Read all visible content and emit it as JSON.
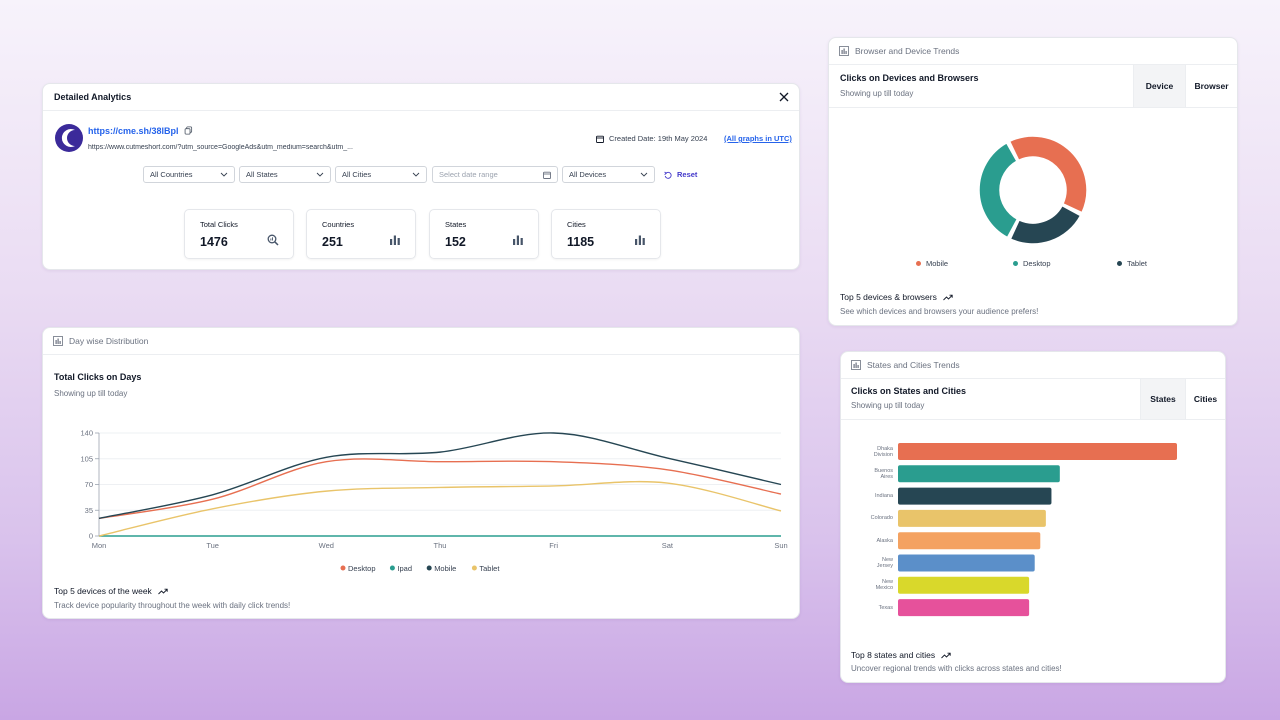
{
  "analytics": {
    "title": "Detailed Analytics",
    "short_url": "https://cme.sh/38lBpl",
    "long_url": "https://www.cutmeshort.com/?utm_source=GoogleAds&utm_medium=search&utm_...",
    "created": "Created Date: 19th May 2024",
    "utc": "(All graphs in UTC)",
    "filters": {
      "countries": "All Countries",
      "states": "All States",
      "cities": "All Cities",
      "date_placeholder": "Select date range",
      "devices": "All Devices",
      "reset": "Reset"
    },
    "stats": [
      {
        "label": "Total Clicks",
        "value": "1476"
      },
      {
        "label": "Countries",
        "value": "251"
      },
      {
        "label": "States",
        "value": "152"
      },
      {
        "label": "Cities",
        "value": "1185"
      }
    ]
  },
  "daywise": {
    "header": "Day wise Distribution",
    "title": "Total Clicks on Days",
    "subtitle": "Showing up till today",
    "footer_title": "Top 5 devices of the week",
    "footer_sub": "Track device popularity throughout the week with daily click trends!"
  },
  "devices": {
    "header": "Browser and Device Trends",
    "title": "Clicks on Devices and Browsers",
    "subtitle": "Showing up till today",
    "tabs": {
      "device": "Device",
      "browser": "Browser"
    },
    "footer_title": "Top 5 devices & browsers",
    "footer_sub": "See which devices and browsers your audience prefers!"
  },
  "states": {
    "header": "States and Cities Trends",
    "title": "Clicks on States and Cities",
    "subtitle": "Showing up till today",
    "tabs": {
      "states": "States",
      "cities": "Cities"
    },
    "footer_title": "Top 8 states and cities",
    "footer_sub": "Uncover regional trends with clicks across states and cities!"
  },
  "chart_data": [
    {
      "type": "line",
      "title": "Total Clicks on Days",
      "categories": [
        "Mon",
        "Tue",
        "Wed",
        "Thu",
        "Fri",
        "Sat",
        "Sun"
      ],
      "ylim": [
        0,
        140
      ],
      "yticks": [
        0,
        35,
        70,
        105,
        140
      ],
      "series": [
        {
          "name": "Desktop",
          "color": "#e76f51",
          "values": [
            24,
            50,
            101,
            101,
            101,
            90,
            57
          ]
        },
        {
          "name": "Ipad",
          "color": "#2a9d8f",
          "values": [
            0,
            0,
            0,
            0,
            0,
            0,
            0
          ]
        },
        {
          "name": "Mobile",
          "color": "#264653",
          "values": [
            24,
            56,
            107,
            114,
            140,
            106,
            70
          ]
        },
        {
          "name": "Tablet",
          "color": "#e9c46a",
          "values": [
            0,
            37,
            61,
            66,
            68,
            72,
            34
          ]
        }
      ]
    },
    {
      "type": "pie",
      "title": "Clicks on Devices and Browsers",
      "labels": [
        "Mobile",
        "Tablet",
        "Desktop"
      ],
      "values": [
        40,
        25,
        35
      ],
      "colors": [
        "#e76f51",
        "#264653",
        "#2a9d8f"
      ]
    },
    {
      "type": "bar",
      "title": "Clicks on States and Cities",
      "categories": [
        "Dhaka Division",
        "Buenos Aires",
        "Indiana",
        "Colorado",
        "Alaska",
        "New Jersey",
        "New Mexico",
        "Texas"
      ],
      "label_lines": [
        [
          "Dhaka",
          "Division"
        ],
        [
          "Buenos",
          "Aires"
        ],
        [
          "Indiana"
        ],
        [
          "Colorado"
        ],
        [
          "Alaska"
        ],
        [
          "New",
          "Jersey"
        ],
        [
          "New",
          "Mexico"
        ],
        [
          "Texas"
        ]
      ],
      "values": [
        100,
        58,
        55,
        53,
        51,
        49,
        47,
        47
      ],
      "colors": [
        "#e76f51",
        "#2a9d8f",
        "#264653",
        "#e9c46a",
        "#f4a261",
        "#5b8fc9",
        "#d9d82b",
        "#e6519b"
      ]
    }
  ]
}
